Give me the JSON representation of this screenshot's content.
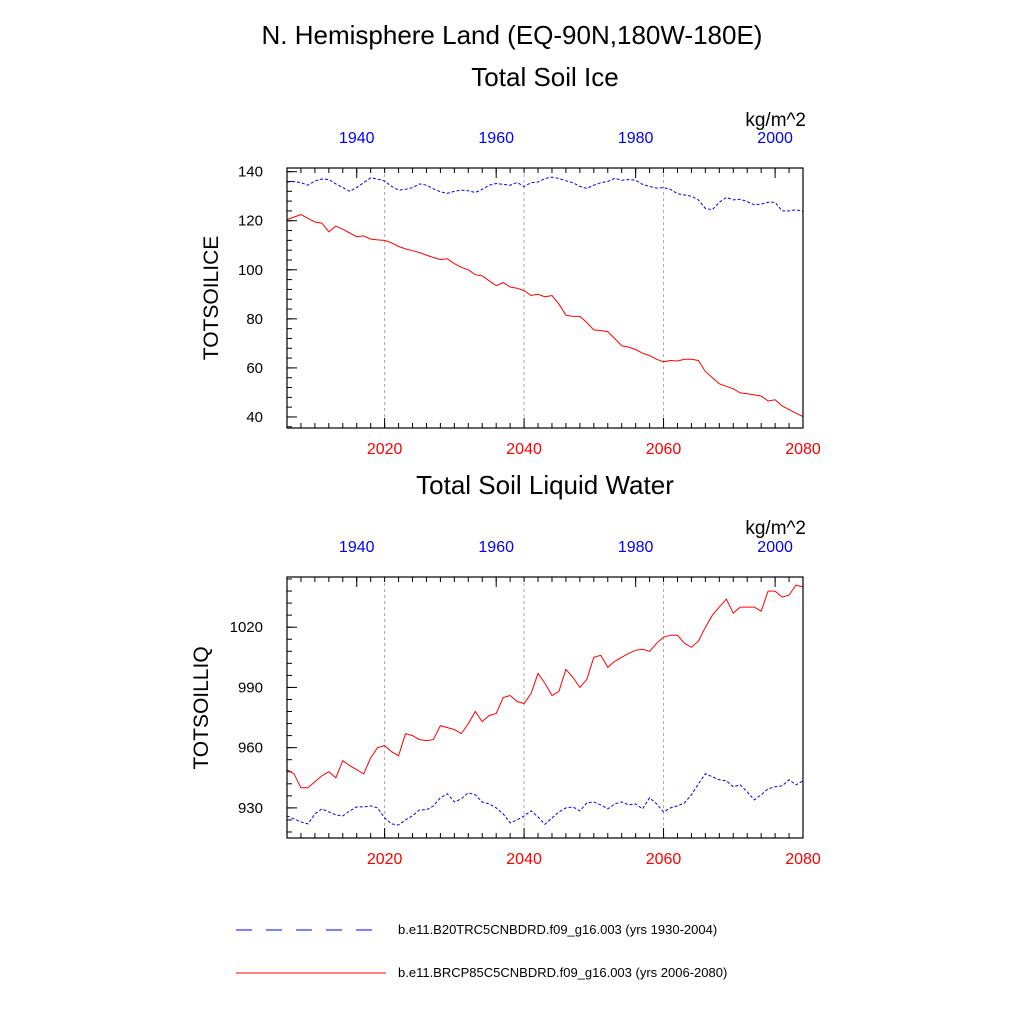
{
  "chart_data": {
    "type": "line",
    "suptitle": "N. Hemisphere Land (EQ-90N,180W-180E)",
    "legend": {
      "position": "bottom",
      "entries": [
        "b.e11.B20TRC5CNBDRD.f09_g16.003 (yrs 1930-2004)",
        "b.e11.BRCP85C5CNBDRD.f09_g16.003 (yrs 2006-2080)"
      ]
    },
    "colors": {
      "historical": "#0000ff",
      "future": "#ff0000",
      "axis": "#000000",
      "grid": "#aaaaaa"
    },
    "panels": [
      {
        "id": "ice",
        "title": "Total Soil Ice",
        "units": "kg/m^2",
        "ylabel": "TOTSOILICE",
        "xlim_bottom": [
          2006,
          2080
        ],
        "xlim_top": [
          1930,
          2004
        ],
        "ylim": [
          35.5,
          141.5
        ],
        "yticks": [
          40,
          60,
          80,
          100,
          120,
          140
        ],
        "ytick_labels": [
          "40",
          "60",
          "80",
          "100",
          "120",
          "140"
        ],
        "xticks_bottom": [
          2020,
          2040,
          2060,
          2080
        ],
        "xtick_labels_bottom": [
          "2020",
          "2040",
          "2060",
          "2080"
        ],
        "xticks_top": [
          1940,
          1960,
          1980,
          2000
        ],
        "xtick_labels_top": [
          "1940",
          "1960",
          "1980",
          "2000"
        ],
        "series": [
          {
            "name": "b.e11.B20TRC5CNBDRD.f09_g16.003 (yrs 1930-2004)",
            "axis": "top",
            "style": "dashed",
            "color": "#0000ff",
            "x_start": 1930,
            "values": [
              135.8,
              136.0,
              135.5,
              134.5,
              136.2,
              137.0,
              136.8,
              135.0,
              133.5,
              132.0,
              133.6,
              135.5,
              137.5,
              137.0,
              136.2,
              134.0,
              132.5,
              132.8,
              133.5,
              135.0,
              134.5,
              133.0,
              131.8,
              131.2,
              132.0,
              132.5,
              132.2,
              131.5,
              132.8,
              134.5,
              135.2,
              134.8,
              134.5,
              135.6,
              134.0,
              135.5,
              135.8,
              137.2,
              137.8,
              137.2,
              136.3,
              135.5,
              134.0,
              133.2,
              134.5,
              135.5,
              136.0,
              137.3,
              136.5,
              136.8,
              136.5,
              134.8,
              134.0,
              133.3,
              133.5,
              132.8,
              131.0,
              130.5,
              130.0,
              128.5,
              125.0,
              124.5,
              127.5,
              129.5,
              128.5,
              128.8,
              127.8,
              126.5,
              126.8,
              127.5,
              127.5,
              124.0,
              124.0,
              124.5,
              123.8
            ]
          },
          {
            "name": "b.e11.BRCP85C5CNBDRD.f09_g16.003 (yrs 2006-2080)",
            "axis": "bottom",
            "style": "solid",
            "color": "#ff0000",
            "x_start": 2006,
            "values": [
              120.5,
              121.5,
              122.5,
              121.0,
              119.5,
              119.0,
              115.5,
              117.8,
              116.5,
              115.0,
              113.5,
              113.8,
              112.5,
              112.2,
              112.0,
              111.0,
              109.5,
              108.5,
              107.8,
              107.0,
              106.0,
              105.0,
              104.2,
              104.5,
              102.5,
              101.0,
              100.0,
              98.0,
              97.5,
              95.5,
              93.5,
              94.8,
              93.0,
              92.5,
              91.5,
              89.5,
              90.0,
              89.0,
              89.5,
              86.0,
              81.5,
              81.0,
              81.0,
              78.5,
              75.5,
              75.2,
              74.8,
              72.0,
              69.0,
              68.5,
              67.5,
              66.0,
              65.0,
              63.5,
              62.5,
              63.0,
              62.8,
              63.5,
              63.5,
              63.0,
              58.5,
              56.0,
              53.5,
              52.5,
              51.5,
              49.8,
              49.5,
              49.0,
              48.5,
              46.5,
              47.0,
              44.5,
              43.0,
              41.5,
              40.2
            ]
          }
        ]
      },
      {
        "id": "liq",
        "title": "Total Soil Liquid Water",
        "units": "kg/m^2",
        "ylabel": "TOTSOILLIQ",
        "xlim_bottom": [
          2006,
          2080
        ],
        "xlim_top": [
          1930,
          2004
        ],
        "ylim": [
          915,
          1045
        ],
        "yticks": [
          930,
          960,
          990,
          1020
        ],
        "ytick_labels": [
          "930",
          "960",
          "990",
          "1020"
        ],
        "xticks_bottom": [
          2020,
          2040,
          2060,
          2080
        ],
        "xtick_labels_bottom": [
          "2020",
          "2040",
          "2060",
          "2080"
        ],
        "xticks_top": [
          1940,
          1960,
          1980,
          2000
        ],
        "xtick_labels_top": [
          "1940",
          "1960",
          "1980",
          "2000"
        ],
        "series": [
          {
            "name": "b.e11.B20TRC5CNBDRD.f09_g16.003 (yrs 1930-2004)",
            "axis": "top",
            "style": "dashed",
            "color": "#0000ff",
            "x_start": 1930,
            "values": [
              926,
              924.5,
              923,
              922,
              927,
              929.5,
              928,
              926.5,
              926,
              928.5,
              930.5,
              930.5,
              931,
              930,
              925,
              922,
              921.5,
              924,
              926,
              929,
              929,
              931,
              935,
              937,
              933,
              934.5,
              937.5,
              936.5,
              933,
              932,
              930,
              927,
              922.5,
              924,
              926,
              928.5,
              925.5,
              921.8,
              925,
              928,
              930,
              930.5,
              928.5,
              932.5,
              933,
              931.5,
              929.5,
              932,
              933,
              931.5,
              932,
              929.5,
              935,
              932,
              928,
              930,
              931,
              932.5,
              936.5,
              942,
              947,
              945.5,
              944,
              943.5,
              940.5,
              941.5,
              938,
              934,
              936.5,
              939.5,
              940.5,
              941,
              944,
              941.5,
              943.5
            ]
          },
          {
            "name": "b.e11.BRCP85C5CNBDRD.f09_g16.003 (yrs 2006-2080)",
            "axis": "bottom",
            "style": "solid",
            "color": "#ff0000",
            "x_start": 2006,
            "values": [
              949,
              947,
              940,
              940,
              943,
              946,
              948,
              945,
              953.5,
              951,
              949,
              947,
              955,
              960,
              961,
              958,
              956,
              967,
              966,
              964,
              963.5,
              964,
              971,
              970,
              969,
              967,
              972,
              978,
              973,
              976,
              977,
              985,
              986,
              983,
              982,
              987,
              997,
              992,
              986,
              988,
              999,
              995,
              990,
              994,
              1005,
              1006,
              1000,
              1003,
              1005,
              1007,
              1008.5,
              1009,
              1008,
              1012,
              1015,
              1016,
              1016,
              1012,
              1010,
              1013,
              1020,
              1026,
              1030,
              1034,
              1027,
              1030,
              1030,
              1030,
              1028,
              1038,
              1038,
              1035,
              1036,
              1041,
              1040
            ]
          }
        ]
      }
    ]
  }
}
